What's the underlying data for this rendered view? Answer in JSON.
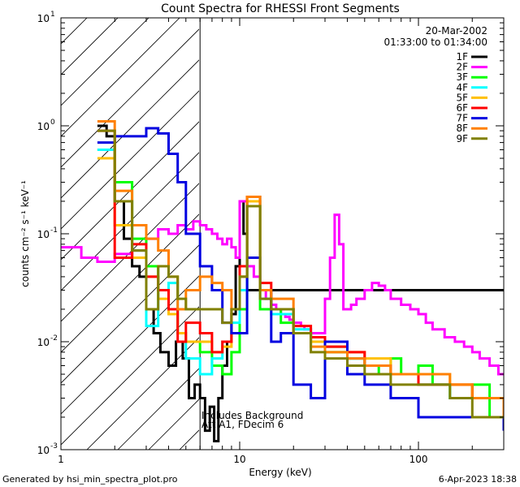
{
  "chart_data": {
    "type": "line",
    "title": "Count Spectra for RHESSI Front Segments",
    "xlabel": "Energy (keV)",
    "ylabel": "counts cm⁻² s⁻¹ keV⁻¹",
    "x_scale": "log",
    "y_scale": "log",
    "xlim": [
      1,
      300
    ],
    "ylim": [
      0.001,
      10
    ],
    "x_ticks": [
      {
        "value": 1,
        "label": "1"
      },
      {
        "value": 10,
        "label": "10"
      },
      {
        "value": 100,
        "label": "100"
      }
    ],
    "y_ticks": [
      {
        "value": 0.001,
        "base": "10",
        "exp": "-3"
      },
      {
        "value": 0.01,
        "base": "10",
        "exp": "-2"
      },
      {
        "value": 0.1,
        "base": "10",
        "exp": "-1"
      },
      {
        "value": 1,
        "base": "10",
        "exp": "0"
      },
      {
        "value": 10,
        "base": "10",
        "exp": "1"
      }
    ],
    "legend": {
      "placement": "top-right",
      "date": "20-Mar-2002",
      "time_range": "01:33:00 to 01:34:00"
    },
    "attenuated_region_max_keV": 6,
    "annotations": [
      "Includes Background",
      "Att A1, FDecim 6"
    ],
    "series": [
      {
        "name": "1F",
        "color": "#000000",
        "x": [
          1.6,
          1.8,
          2.0,
          2.25,
          2.5,
          2.75,
          3.0,
          3.3,
          3.6,
          4.0,
          4.4,
          4.8,
          5.2,
          5.6,
          6.0,
          6.4,
          6.8,
          7.2,
          7.6,
          8.0,
          8.5,
          9.0,
          9.5,
          10.0,
          10.5,
          11.0
        ],
        "y": [
          1.0,
          0.8,
          0.2,
          0.09,
          0.05,
          0.04,
          0.02,
          0.012,
          0.008,
          0.006,
          0.01,
          0.007,
          0.003,
          0.004,
          0.003,
          0.0015,
          0.0025,
          0.0012,
          0.003,
          0.006,
          0.01,
          0.018,
          0.05,
          0.2,
          0.1,
          0.03
        ]
      },
      {
        "name": "2F",
        "color": "#ff00ff",
        "x": [
          1.0,
          1.3,
          1.6,
          2.0,
          2.5,
          3.0,
          3.5,
          4.0,
          4.5,
          5.0,
          5.5,
          6.0,
          6.5,
          7.0,
          7.5,
          8.0,
          8.5,
          9.0,
          9.5,
          10.0,
          11.0,
          12.0,
          13.0,
          14.0,
          15.0,
          16.0,
          17.0,
          18.0,
          19.0,
          20.0,
          21.0,
          22.0,
          23.0,
          24.0,
          25.0,
          26.0,
          28.0,
          30.0,
          32.0,
          34.0,
          36.0,
          38.0,
          40.0,
          42.0,
          45.0,
          50.0,
          55.0,
          60.0,
          65.0,
          70.0,
          80.0,
          90.0,
          100.0,
          110.0,
          120.0,
          140.0,
          160.0,
          180.0,
          200.0,
          220.0,
          250.0,
          280.0,
          300.0
        ],
        "y": [
          0.075,
          0.06,
          0.055,
          0.065,
          0.07,
          0.09,
          0.11,
          0.1,
          0.12,
          0.11,
          0.13,
          0.12,
          0.11,
          0.1,
          0.09,
          0.08,
          0.09,
          0.075,
          0.06,
          0.2,
          0.05,
          0.04,
          0.03,
          0.025,
          0.022,
          0.02,
          0.018,
          0.017,
          0.016,
          0.015,
          0.015,
          0.014,
          0.013,
          0.013,
          0.012,
          0.012,
          0.012,
          0.025,
          0.06,
          0.15,
          0.08,
          0.02,
          0.02,
          0.022,
          0.025,
          0.03,
          0.035,
          0.033,
          0.03,
          0.025,
          0.022,
          0.02,
          0.018,
          0.015,
          0.013,
          0.011,
          0.01,
          0.009,
          0.008,
          0.007,
          0.006,
          0.005,
          0.005
        ]
      },
      {
        "name": "3F",
        "color": "#00ff00",
        "x": [
          1.6,
          2.0,
          2.5,
          3.0,
          3.5,
          4.0,
          4.5,
          5.0,
          6.0,
          7.0,
          8.0,
          9.0,
          10.0,
          11.0,
          13.0,
          15.0,
          17.0,
          20.0,
          25.0,
          30.0,
          40.0,
          50.0,
          60.0,
          70.0,
          80.0,
          100.0,
          120.0,
          150.0,
          200.0,
          250.0,
          300.0
        ],
        "y": [
          0.6,
          0.3,
          0.09,
          0.05,
          0.03,
          0.02,
          0.012,
          0.01,
          0.008,
          0.006,
          0.005,
          0.008,
          0.02,
          0.2,
          0.02,
          0.02,
          0.015,
          0.012,
          0.01,
          0.008,
          0.007,
          0.006,
          0.005,
          0.007,
          0.005,
          0.006,
          0.004,
          0.003,
          0.004,
          0.002,
          0.002
        ]
      },
      {
        "name": "4F",
        "color": "#00ffff",
        "x": [
          1.6,
          2.0,
          2.5,
          3.0,
          3.5,
          4.0,
          4.5,
          5.0,
          6.0,
          7.0,
          8.0,
          9.0,
          10.0,
          11.0,
          13.0,
          15.0,
          20.0,
          25.0,
          30.0,
          40.0,
          50.0,
          70.0,
          100.0,
          150.0,
          200.0,
          300.0
        ],
        "y": [
          0.6,
          0.2,
          0.07,
          0.014,
          0.03,
          0.035,
          0.012,
          0.007,
          0.005,
          0.007,
          0.01,
          0.015,
          0.03,
          0.22,
          0.025,
          0.018,
          0.013,
          0.01,
          0.009,
          0.007,
          0.006,
          0.005,
          0.004,
          0.003,
          0.003,
          0.002
        ]
      },
      {
        "name": "5F",
        "color": "#ffc000",
        "x": [
          1.6,
          2.0,
          2.5,
          3.0,
          3.5,
          4.0,
          4.5,
          5.0,
          6.0,
          7.0,
          8.0,
          9.0,
          10.0,
          11.0,
          13.0,
          15.0,
          20.0,
          25.0,
          30.0,
          40.0,
          50.0,
          70.0,
          100.0,
          150.0,
          200.0,
          300.0
        ],
        "y": [
          0.5,
          0.12,
          0.06,
          0.04,
          0.025,
          0.018,
          0.012,
          0.01,
          0.01,
          0.008,
          0.009,
          0.02,
          0.04,
          0.2,
          0.03,
          0.02,
          0.012,
          0.01,
          0.009,
          0.008,
          0.007,
          0.005,
          0.005,
          0.004,
          0.003,
          0.002
        ]
      },
      {
        "name": "6F",
        "color": "#ff0000",
        "x": [
          1.6,
          2.0,
          2.5,
          3.0,
          3.5,
          4.0,
          4.5,
          5.0,
          6.0,
          7.0,
          8.0,
          9.0,
          10.0,
          11.0,
          13.0,
          15.0,
          20.0,
          25.0,
          30.0,
          40.0,
          50.0,
          70.0,
          100.0,
          150.0,
          200.0,
          300.0
        ],
        "y": [
          0.9,
          0.06,
          0.08,
          0.04,
          0.03,
          0.02,
          0.01,
          0.015,
          0.012,
          0.008,
          0.01,
          0.02,
          0.05,
          0.22,
          0.035,
          0.02,
          0.014,
          0.011,
          0.009,
          0.008,
          0.006,
          0.005,
          0.004,
          0.004,
          0.003,
          0.002
        ]
      },
      {
        "name": "7F",
        "color": "#0000e0",
        "x": [
          1.6,
          2.0,
          2.5,
          3.0,
          3.5,
          4.0,
          4.5,
          5.0,
          6.0,
          7.0,
          8.0,
          9.0,
          10.0,
          11.0,
          13.0,
          15.0,
          17.0,
          20.0,
          25.0,
          30.0,
          40.0,
          50.0,
          70.0,
          100.0,
          150.0,
          200.0,
          300.0
        ],
        "y": [
          0.7,
          0.8,
          0.8,
          0.95,
          0.85,
          0.55,
          0.3,
          0.1,
          0.05,
          0.03,
          0.015,
          0.012,
          0.012,
          0.06,
          0.03,
          0.01,
          0.012,
          0.004,
          0.003,
          0.01,
          0.005,
          0.004,
          0.003,
          0.002,
          0.002,
          0.002,
          0.0015
        ]
      },
      {
        "name": "8F",
        "color": "#ff8000",
        "x": [
          1.6,
          2.0,
          2.5,
          3.0,
          3.5,
          4.0,
          4.5,
          5.0,
          6.0,
          7.0,
          8.0,
          9.0,
          10.0,
          11.0,
          13.0,
          15.0,
          20.0,
          25.0,
          30.0,
          40.0,
          50.0,
          70.0,
          100.0,
          150.0,
          200.0,
          300.0
        ],
        "y": [
          1.1,
          0.25,
          0.12,
          0.09,
          0.07,
          0.04,
          0.02,
          0.03,
          0.04,
          0.035,
          0.03,
          0.02,
          0.04,
          0.22,
          0.03,
          0.025,
          0.012,
          0.009,
          0.008,
          0.007,
          0.006,
          0.005,
          0.005,
          0.004,
          0.003,
          0.002
        ]
      },
      {
        "name": "9F",
        "color": "#808000",
        "x": [
          1.6,
          2.0,
          2.5,
          3.0,
          3.5,
          4.0,
          4.5,
          5.0,
          6.0,
          7.0,
          8.0,
          9.0,
          10.0,
          11.0,
          13.0,
          15.0,
          20.0,
          25.0,
          30.0,
          40.0,
          50.0,
          70.0,
          100.0,
          150.0,
          200.0,
          300.0
        ],
        "y": [
          0.9,
          0.2,
          0.07,
          0.02,
          0.05,
          0.04,
          0.025,
          0.02,
          0.02,
          0.02,
          0.015,
          0.02,
          0.04,
          0.18,
          0.025,
          0.02,
          0.012,
          0.008,
          0.007,
          0.006,
          0.005,
          0.004,
          0.004,
          0.003,
          0.002,
          0.002
        ]
      }
    ]
  },
  "footer": {
    "generated_by": "Generated by hsi_min_spectra_plot.pro",
    "generated_on": "6-Apr-2023 18:38"
  }
}
